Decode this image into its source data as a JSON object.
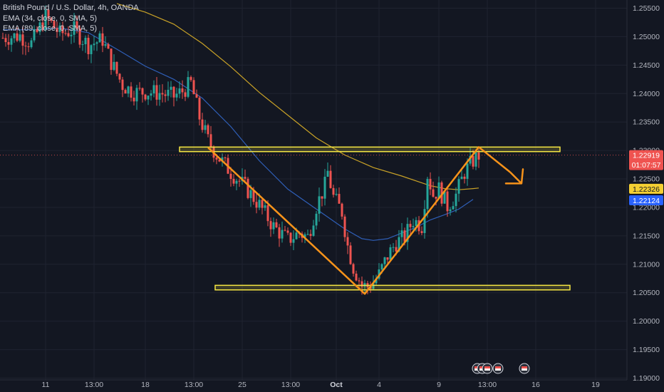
{
  "header": {
    "title": "British Pound / U.S. Dollar, 4h, OANDA",
    "indicators": [
      "EMA (34, close, 0, SMA, 5)",
      "EMA (89, close, 0, SMA, 5)"
    ]
  },
  "colors": {
    "background": "#131722",
    "up": "#26a69a",
    "down": "#ef5350",
    "ema34": "#2f5fb8",
    "ema89": "#c9a227",
    "zone": "#f5e642",
    "pattern": "#f7931a",
    "grid": "#1f2330"
  },
  "chart_data": {
    "type": "candlestick",
    "symbol": "GBP/USD",
    "timeframe": "4h",
    "ylim": [
      1.19,
      1.256
    ],
    "xlim": [
      0,
      232
    ],
    "y_ticks": [
      "1.25500",
      "1.25000",
      "1.24500",
      "1.24000",
      "1.23500",
      "1.23000",
      "1.22500",
      "1.22000",
      "1.21500",
      "1.21000",
      "1.20500",
      "1.20000",
      "1.19500",
      "1.19000"
    ],
    "y_tick_values": [
      1.255,
      1.25,
      1.245,
      1.24,
      1.235,
      1.23,
      1.225,
      1.22,
      1.215,
      1.21,
      1.205,
      1.2,
      1.195,
      1.19
    ],
    "x_ticks": [
      {
        "label": "11",
        "x": 15,
        "bold": false
      },
      {
        "label": "13:00",
        "x": 32,
        "bold": false
      },
      {
        "label": "18",
        "x": 50,
        "bold": false
      },
      {
        "label": "13:00",
        "x": 67,
        "bold": false
      },
      {
        "label": "25",
        "x": 84,
        "bold": false
      },
      {
        "label": "13:00",
        "x": 101,
        "bold": false
      },
      {
        "label": "Oct",
        "x": 117,
        "bold": true
      },
      {
        "label": "4",
        "x": 132,
        "bold": false
      },
      {
        "label": "9",
        "x": 153,
        "bold": false
      },
      {
        "label": "13:00",
        "x": 170,
        "bold": false
      },
      {
        "label": "16",
        "x": 187,
        "bold": false
      },
      {
        "label": "19",
        "x": 208,
        "bold": false
      }
    ],
    "price_labels": [
      {
        "price": 1.22919,
        "text": "1.22919",
        "sub": "01:07:57",
        "bg": "#ef5350",
        "fg": "#ffffff"
      },
      {
        "price": 1.22326,
        "text": "1.22326",
        "sub": "",
        "bg": "#f5d033",
        "fg": "#131722"
      },
      {
        "price": 1.22124,
        "text": "1.22124",
        "sub": "",
        "bg": "#2962ff",
        "fg": "#ffffff"
      }
    ],
    "close_points": [
      [
        0,
        1.2498
      ],
      [
        6,
        1.2502
      ],
      [
        10,
        1.2488
      ],
      [
        15,
        1.2535
      ],
      [
        20,
        1.2505
      ],
      [
        25,
        1.2512
      ],
      [
        30,
        1.2485
      ],
      [
        35,
        1.2495
      ],
      [
        38,
        1.2455
      ],
      [
        42,
        1.2415
      ],
      [
        46,
        1.2402
      ],
      [
        50,
        1.2403
      ],
      [
        55,
        1.2401
      ],
      [
        60,
        1.2395
      ],
      [
        63,
        1.2404
      ],
      [
        66,
        1.2418
      ],
      [
        69,
        1.2358
      ],
      [
        72,
        1.2318
      ],
      [
        75,
        1.2292
      ],
      [
        80,
        1.2262
      ],
      [
        85,
        1.2236
      ],
      [
        90,
        1.2204
      ],
      [
        95,
        1.2166
      ],
      [
        100,
        1.2143
      ],
      [
        104,
        1.2155
      ],
      [
        107,
        1.2148
      ],
      [
        110,
        1.2202
      ],
      [
        113,
        1.2238
      ],
      [
        114,
        1.2262
      ],
      [
        116,
        1.2218
      ],
      [
        119,
        1.2192
      ],
      [
        121,
        1.2132
      ],
      [
        123,
        1.2095
      ],
      [
        126,
        1.2062
      ],
      [
        128,
        1.2061
      ],
      [
        130,
        1.2068
      ],
      [
        132,
        1.2082
      ],
      [
        135,
        1.2115
      ],
      [
        138,
        1.2138
      ],
      [
        141,
        1.2148
      ],
      [
        144,
        1.2178
      ],
      [
        147,
        1.2168
      ],
      [
        149,
        1.2258
      ],
      [
        151,
        1.2222
      ],
      [
        153,
        1.2232
      ],
      [
        156,
        1.2202
      ],
      [
        159,
        1.2222
      ],
      [
        162,
        1.2262
      ],
      [
        165,
        1.2282
      ],
      [
        167,
        1.2292
      ]
    ],
    "ema34": [
      [
        0,
        1.2512
      ],
      [
        10,
        1.2512
      ],
      [
        20,
        1.2515
      ],
      [
        30,
        1.2507
      ],
      [
        40,
        1.2478
      ],
      [
        50,
        1.2448
      ],
      [
        60,
        1.2425
      ],
      [
        70,
        1.2392
      ],
      [
        80,
        1.2342
      ],
      [
        90,
        1.2282
      ],
      [
        100,
        1.2232
      ],
      [
        110,
        1.2197
      ],
      [
        120,
        1.2162
      ],
      [
        126,
        1.2145
      ],
      [
        130,
        1.2142
      ],
      [
        135,
        1.2145
      ],
      [
        140,
        1.2155
      ],
      [
        145,
        1.2165
      ],
      [
        150,
        1.2178
      ],
      [
        155,
        1.2187
      ],
      [
        160,
        1.2197
      ],
      [
        165,
        1.2214
      ]
    ],
    "ema89": [
      [
        40,
        1.2558
      ],
      [
        50,
        1.2543
      ],
      [
        60,
        1.2522
      ],
      [
        70,
        1.2488
      ],
      [
        80,
        1.2447
      ],
      [
        90,
        1.2402
      ],
      [
        100,
        1.2362
      ],
      [
        110,
        1.2322
      ],
      [
        120,
        1.2292
      ],
      [
        130,
        1.227
      ],
      [
        140,
        1.2255
      ],
      [
        150,
        1.2238
      ],
      [
        155,
        1.2233
      ],
      [
        160,
        1.2231
      ],
      [
        165,
        1.2233
      ],
      [
        167,
        1.2234
      ]
    ],
    "zones": [
      {
        "x0": 62,
        "x1": 195.5,
        "y0": 1.2306,
        "y1": 1.2298
      },
      {
        "x0": 74.5,
        "x1": 199,
        "y0": 1.2063,
        "y1": 1.2055
      }
    ],
    "pattern_path": [
      [
        72,
        1.2305
      ],
      [
        127,
        1.2048
      ],
      [
        167,
        1.2306
      ],
      [
        178,
        1.2262
      ]
    ],
    "arrow_tip": [
      182,
      1.2242
    ],
    "price_line": 1.22919
  }
}
